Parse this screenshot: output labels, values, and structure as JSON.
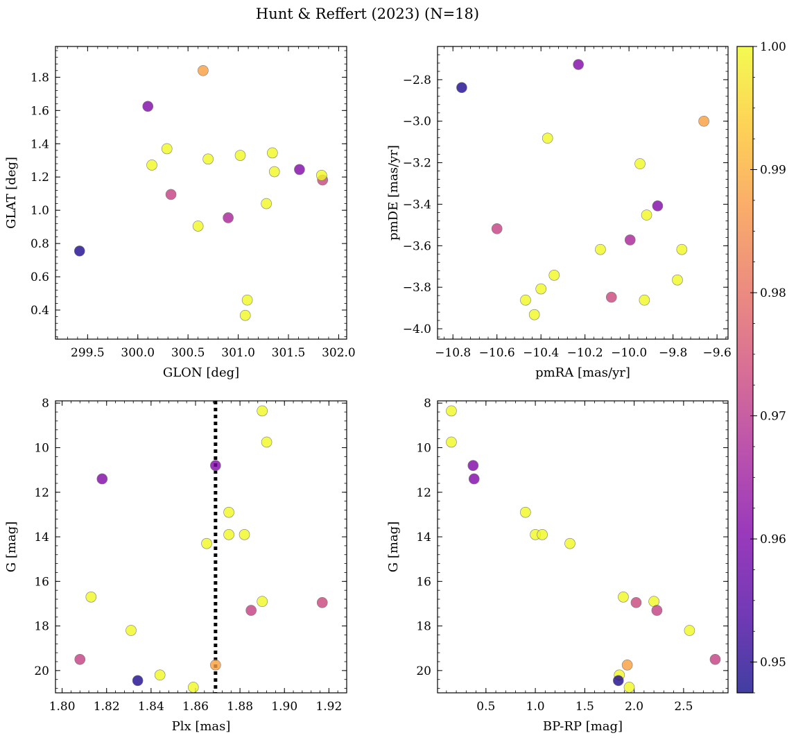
{
  "chart_data": {
    "type": "scatter",
    "title": "Hunt & Reffert (2023) (N=18)",
    "colormap": "plasma",
    "colorbar": {
      "range": [
        0.9475,
        1.0
      ],
      "ticks": [
        "0.95",
        "0.96",
        "0.97",
        "0.98",
        "0.99",
        "1.00"
      ],
      "tick_values": [
        0.95,
        0.96,
        0.97,
        0.98,
        0.99,
        1.0
      ]
    },
    "panels": [
      {
        "xlabel": "GLON [deg]",
        "ylabel": "GLAT [deg]",
        "xlim": [
          299.18,
          302.08
        ],
        "ylim": [
          0.225,
          1.985
        ],
        "xticks": [
          "299.5",
          "300.0",
          "300.5",
          "301.0",
          "301.5",
          "302.0"
        ],
        "xtick_values": [
          299.5,
          300.0,
          300.5,
          301.0,
          301.5,
          302.0
        ],
        "yticks": [
          "0.4",
          "0.6",
          "0.8",
          "1.0",
          "1.2",
          "1.4",
          "1.6",
          "1.8"
        ],
        "ytick_values": [
          0.4,
          0.6,
          0.8,
          1.0,
          1.2,
          1.4,
          1.6,
          1.8
        ],
        "y_inverted": false,
        "points": [
          {
            "x": 299.42,
            "y": 0.755,
            "c": 0.949
          },
          {
            "x": 300.1,
            "y": 1.625,
            "c": 0.961
          },
          {
            "x": 300.65,
            "y": 1.84,
            "c": 0.988
          },
          {
            "x": 300.14,
            "y": 1.272,
            "c": 1.0
          },
          {
            "x": 300.29,
            "y": 1.37,
            "c": 1.0
          },
          {
            "x": 300.33,
            "y": 1.095,
            "c": 0.972
          },
          {
            "x": 300.6,
            "y": 0.905,
            "c": 1.0
          },
          {
            "x": 300.7,
            "y": 1.308,
            "c": 1.0
          },
          {
            "x": 300.9,
            "y": 0.955,
            "c": 0.967
          },
          {
            "x": 301.02,
            "y": 1.33,
            "c": 1.0
          },
          {
            "x": 301.28,
            "y": 1.04,
            "c": 1.0
          },
          {
            "x": 301.34,
            "y": 1.345,
            "c": 1.0
          },
          {
            "x": 301.36,
            "y": 1.232,
            "c": 1.0
          },
          {
            "x": 301.61,
            "y": 1.245,
            "c": 0.961
          },
          {
            "x": 301.84,
            "y": 1.182,
            "c": 0.973
          },
          {
            "x": 301.83,
            "y": 1.21,
            "c": 1.0
          },
          {
            "x": 301.09,
            "y": 0.46,
            "c": 1.0
          },
          {
            "x": 301.07,
            "y": 0.368,
            "c": 1.0
          }
        ]
      },
      {
        "xlabel": "pmRA [mas/yr]",
        "ylabel": "pmDE [mas/yr]",
        "xlim": [
          -10.87,
          -9.55
        ],
        "ylim": [
          -4.05,
          -2.64
        ],
        "xticks": [
          "−10.8",
          "−10.6",
          "−10.4",
          "−10.2",
          "−10.0",
          "−9.8",
          "−9.6"
        ],
        "xtick_values": [
          -10.8,
          -10.6,
          -10.4,
          -10.2,
          -10.0,
          -9.8,
          -9.6
        ],
        "yticks": [
          "−4.0",
          "−3.8",
          "−3.6",
          "−3.4",
          "−3.2",
          "−3.0",
          "−2.8"
        ],
        "ytick_values": [
          -4.0,
          -3.8,
          -3.6,
          -3.4,
          -3.2,
          -3.0,
          -2.8
        ],
        "y_inverted": false,
        "points": [
          {
            "x": -10.76,
            "y": -2.838,
            "c": 0.949
          },
          {
            "x": -10.23,
            "y": -2.727,
            "c": 0.961
          },
          {
            "x": -9.66,
            "y": -3.0,
            "c": 0.988
          },
          {
            "x": -10.37,
            "y": -3.082,
            "c": 1.0
          },
          {
            "x": -9.95,
            "y": -3.205,
            "c": 1.0
          },
          {
            "x": -10.6,
            "y": -3.518,
            "c": 0.972
          },
          {
            "x": -9.87,
            "y": -3.408,
            "c": 0.961
          },
          {
            "x": -9.92,
            "y": -3.452,
            "c": 1.0
          },
          {
            "x": -9.995,
            "y": -3.572,
            "c": 0.967
          },
          {
            "x": -10.13,
            "y": -3.618,
            "c": 1.0
          },
          {
            "x": -9.76,
            "y": -3.618,
            "c": 1.0
          },
          {
            "x": -10.34,
            "y": -3.742,
            "c": 1.0
          },
          {
            "x": -9.78,
            "y": -3.765,
            "c": 1.0
          },
          {
            "x": -10.4,
            "y": -3.808,
            "c": 1.0
          },
          {
            "x": -10.08,
            "y": -3.848,
            "c": 0.973
          },
          {
            "x": -10.47,
            "y": -3.862,
            "c": 1.0
          },
          {
            "x": -9.93,
            "y": -3.862,
            "c": 1.0
          },
          {
            "x": -10.43,
            "y": -3.932,
            "c": 1.0
          }
        ]
      },
      {
        "xlabel": "Plx [mas]",
        "ylabel": "G [mag]",
        "xlim": [
          1.797,
          1.928
        ],
        "ylim": [
          21.0,
          7.9
        ],
        "xticks": [
          "1.80",
          "1.82",
          "1.84",
          "1.86",
          "1.88",
          "1.90",
          "1.92"
        ],
        "xtick_values": [
          1.8,
          1.82,
          1.84,
          1.86,
          1.88,
          1.9,
          1.92
        ],
        "yticks": [
          "8",
          "10",
          "12",
          "14",
          "16",
          "18",
          "20"
        ],
        "ytick_values": [
          8,
          10,
          12,
          14,
          16,
          18,
          20
        ],
        "y_inverted": true,
        "vline": 1.869,
        "points": [
          {
            "x": 1.89,
            "y": 8.35,
            "c": 1.0
          },
          {
            "x": 1.892,
            "y": 9.75,
            "c": 1.0
          },
          {
            "x": 1.869,
            "y": 10.8,
            "c": 0.961
          },
          {
            "x": 1.818,
            "y": 11.4,
            "c": 0.961
          },
          {
            "x": 1.875,
            "y": 12.9,
            "c": 1.0
          },
          {
            "x": 1.875,
            "y": 13.9,
            "c": 1.0
          },
          {
            "x": 1.882,
            "y": 13.9,
            "c": 1.0
          },
          {
            "x": 1.865,
            "y": 14.3,
            "c": 1.0
          },
          {
            "x": 1.813,
            "y": 16.7,
            "c": 1.0
          },
          {
            "x": 1.89,
            "y": 16.9,
            "c": 1.0
          },
          {
            "x": 1.917,
            "y": 16.95,
            "c": 0.973
          },
          {
            "x": 1.885,
            "y": 17.3,
            "c": 0.972
          },
          {
            "x": 1.831,
            "y": 18.2,
            "c": 1.0
          },
          {
            "x": 1.808,
            "y": 19.5,
            "c": 0.972
          },
          {
            "x": 1.869,
            "y": 19.75,
            "c": 0.988
          },
          {
            "x": 1.844,
            "y": 20.2,
            "c": 1.0
          },
          {
            "x": 1.834,
            "y": 20.45,
            "c": 0.949
          },
          {
            "x": 1.859,
            "y": 20.75,
            "c": 1.0
          }
        ]
      },
      {
        "xlabel": "BP-RP [mag]",
        "ylabel": "G [mag]",
        "xlim": [
          0.01,
          2.95
        ],
        "ylim": [
          21.0,
          7.9
        ],
        "xticks": [
          "0.5",
          "1.0",
          "1.5",
          "2.0",
          "2.5"
        ],
        "xtick_values": [
          0.5,
          1.0,
          1.5,
          2.0,
          2.5
        ],
        "yticks": [
          "8",
          "10",
          "12",
          "14",
          "16",
          "18",
          "20"
        ],
        "ytick_values": [
          8,
          10,
          12,
          14,
          16,
          18,
          20
        ],
        "y_inverted": true,
        "points": [
          {
            "x": 0.15,
            "y": 8.35,
            "c": 1.0
          },
          {
            "x": 0.15,
            "y": 9.75,
            "c": 1.0
          },
          {
            "x": 0.37,
            "y": 10.8,
            "c": 0.961
          },
          {
            "x": 0.38,
            "y": 11.4,
            "c": 0.961
          },
          {
            "x": 0.9,
            "y": 12.9,
            "c": 1.0
          },
          {
            "x": 1.0,
            "y": 13.9,
            "c": 1.0
          },
          {
            "x": 1.07,
            "y": 13.9,
            "c": 1.0
          },
          {
            "x": 1.35,
            "y": 14.3,
            "c": 1.0
          },
          {
            "x": 1.89,
            "y": 16.7,
            "c": 1.0
          },
          {
            "x": 2.2,
            "y": 16.9,
            "c": 1.0
          },
          {
            "x": 2.02,
            "y": 16.95,
            "c": 0.973
          },
          {
            "x": 2.23,
            "y": 17.3,
            "c": 0.972
          },
          {
            "x": 2.56,
            "y": 18.2,
            "c": 1.0
          },
          {
            "x": 2.82,
            "y": 19.5,
            "c": 0.972
          },
          {
            "x": 1.93,
            "y": 19.75,
            "c": 0.988
          },
          {
            "x": 1.85,
            "y": 20.2,
            "c": 1.0
          },
          {
            "x": 1.84,
            "y": 20.45,
            "c": 0.949
          },
          {
            "x": 1.95,
            "y": 20.75,
            "c": 1.0
          }
        ]
      }
    ]
  }
}
